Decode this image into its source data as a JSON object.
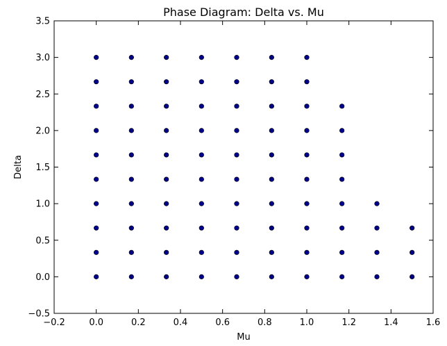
{
  "chart_data": {
    "type": "scatter",
    "title": "Phase Diagram: Delta vs. Mu",
    "xlabel": "Mu",
    "ylabel": "Delta",
    "xlim": [
      -0.2,
      1.6
    ],
    "ylim": [
      -0.5,
      3.5
    ],
    "xticks": [
      "−0.2",
      "0.0",
      "0.2",
      "0.4",
      "0.6",
      "0.8",
      "1.0",
      "1.2",
      "1.4",
      "1.6"
    ],
    "yticks": [
      "−0.5",
      "0.0",
      "0.5",
      "1.0",
      "1.5",
      "2.0",
      "2.5",
      "3.0",
      "3.5"
    ],
    "grid": false,
    "marker_color": "#00008b",
    "points": [
      [
        0.0,
        0.0
      ],
      [
        0.0,
        0.333
      ],
      [
        0.0,
        0.667
      ],
      [
        0.0,
        1.0
      ],
      [
        0.0,
        1.333
      ],
      [
        0.0,
        1.667
      ],
      [
        0.0,
        2.0
      ],
      [
        0.0,
        2.333
      ],
      [
        0.0,
        2.667
      ],
      [
        0.0,
        3.0
      ],
      [
        0.167,
        0.0
      ],
      [
        0.167,
        0.333
      ],
      [
        0.167,
        0.667
      ],
      [
        0.167,
        1.0
      ],
      [
        0.167,
        1.333
      ],
      [
        0.167,
        1.667
      ],
      [
        0.167,
        2.0
      ],
      [
        0.167,
        2.333
      ],
      [
        0.167,
        2.667
      ],
      [
        0.167,
        3.0
      ],
      [
        0.333,
        0.0
      ],
      [
        0.333,
        0.333
      ],
      [
        0.333,
        0.667
      ],
      [
        0.333,
        1.0
      ],
      [
        0.333,
        1.333
      ],
      [
        0.333,
        1.667
      ],
      [
        0.333,
        2.0
      ],
      [
        0.333,
        2.333
      ],
      [
        0.333,
        2.667
      ],
      [
        0.333,
        3.0
      ],
      [
        0.5,
        0.0
      ],
      [
        0.5,
        0.333
      ],
      [
        0.5,
        0.667
      ],
      [
        0.5,
        1.0
      ],
      [
        0.5,
        1.333
      ],
      [
        0.5,
        1.667
      ],
      [
        0.5,
        2.0
      ],
      [
        0.5,
        2.333
      ],
      [
        0.5,
        2.667
      ],
      [
        0.5,
        3.0
      ],
      [
        0.667,
        0.0
      ],
      [
        0.667,
        0.333
      ],
      [
        0.667,
        0.667
      ],
      [
        0.667,
        1.0
      ],
      [
        0.667,
        1.333
      ],
      [
        0.667,
        1.667
      ],
      [
        0.667,
        2.0
      ],
      [
        0.667,
        2.333
      ],
      [
        0.667,
        2.667
      ],
      [
        0.667,
        3.0
      ],
      [
        0.833,
        0.0
      ],
      [
        0.833,
        0.333
      ],
      [
        0.833,
        0.667
      ],
      [
        0.833,
        1.0
      ],
      [
        0.833,
        1.333
      ],
      [
        0.833,
        1.667
      ],
      [
        0.833,
        2.0
      ],
      [
        0.833,
        2.333
      ],
      [
        0.833,
        2.667
      ],
      [
        0.833,
        3.0
      ],
      [
        1.0,
        0.0
      ],
      [
        1.0,
        0.333
      ],
      [
        1.0,
        0.667
      ],
      [
        1.0,
        1.0
      ],
      [
        1.0,
        1.333
      ],
      [
        1.0,
        1.667
      ],
      [
        1.0,
        2.0
      ],
      [
        1.0,
        2.333
      ],
      [
        1.0,
        2.667
      ],
      [
        1.0,
        3.0
      ],
      [
        1.167,
        0.0
      ],
      [
        1.167,
        0.333
      ],
      [
        1.167,
        0.667
      ],
      [
        1.167,
        1.0
      ],
      [
        1.167,
        1.333
      ],
      [
        1.167,
        1.667
      ],
      [
        1.167,
        2.0
      ],
      [
        1.167,
        2.333
      ],
      [
        1.333,
        0.0
      ],
      [
        1.333,
        0.333
      ],
      [
        1.333,
        0.667
      ],
      [
        1.333,
        1.0
      ],
      [
        1.5,
        0.0
      ],
      [
        1.5,
        0.333
      ],
      [
        1.5,
        0.667
      ]
    ]
  }
}
